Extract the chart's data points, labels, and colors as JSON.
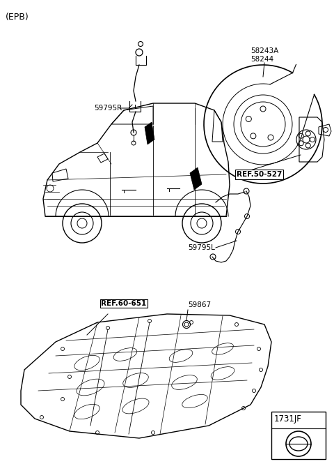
{
  "bg_color": "#ffffff",
  "labels": {
    "epb": "(EPB)",
    "part1": "59795R",
    "part2a": "58243A",
    "part2b": "58244",
    "part3": "REF.50-527",
    "part4": "59795L",
    "part5": "REF.60-651",
    "part6": "59867",
    "part7": "1731JF"
  },
  "figsize": [
    4.8,
    6.65
  ],
  "dpi": 100
}
